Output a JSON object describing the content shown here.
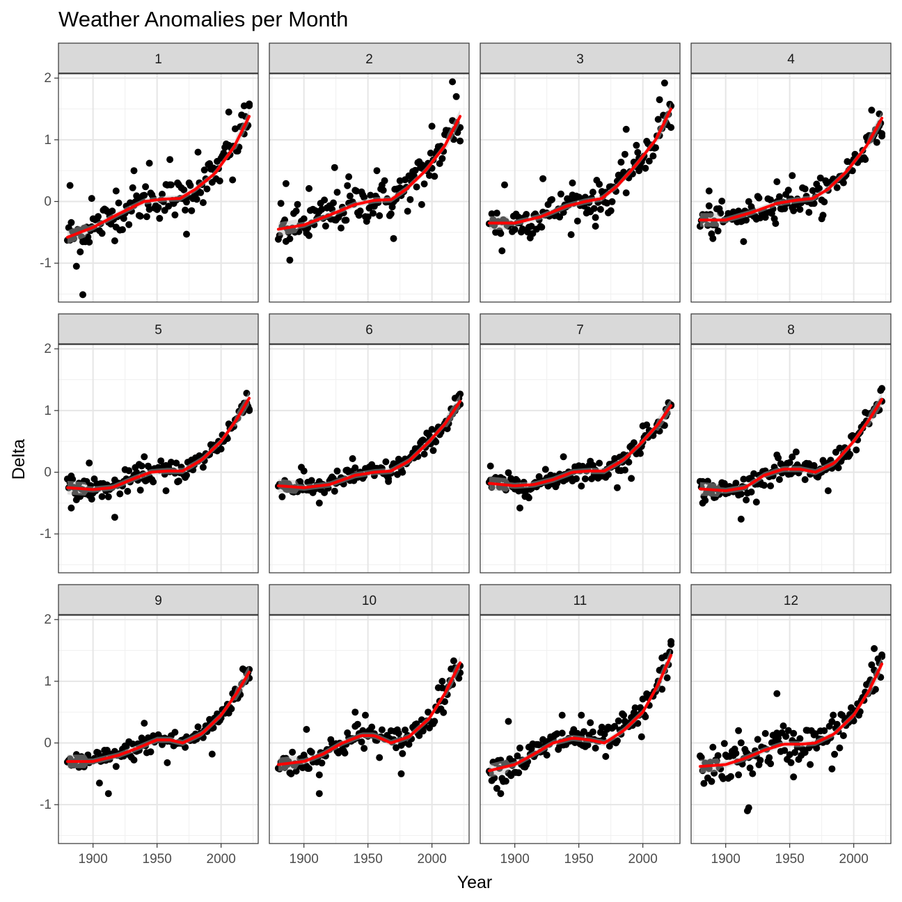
{
  "chart_data": {
    "type": "scatter",
    "title": "Weather Anomalies per Month",
    "xlabel": "Year",
    "ylabel": "Delta",
    "xlim": [
      1873,
      2029
    ],
    "ylim": [
      -1.63,
      2.07
    ],
    "xticks": [
      1900,
      1950,
      2000
    ],
    "yticks": [
      -1,
      0,
      1,
      2
    ],
    "grid": true,
    "facet_layout": "3 rows x 4 columns",
    "smooth_color": "#ff0000",
    "smooth_band_color": "#bdbdbd",
    "point_color": "#000000",
    "strip_fill": "#d9d9d9",
    "panels": [
      {
        "label": "1",
        "smooth": [
          [
            1880,
            -0.58
          ],
          [
            1900,
            -0.42
          ],
          [
            1920,
            -0.2
          ],
          [
            1940,
            0.0
          ],
          [
            1955,
            0.04
          ],
          [
            1968,
            0.05
          ],
          [
            1980,
            0.2
          ],
          [
            1995,
            0.45
          ],
          [
            2010,
            0.88
          ],
          [
            2022,
            1.38
          ]
        ],
        "outliers": [
          [
            1882,
            0.26
          ],
          [
            1887,
            -1.05
          ],
          [
            1892,
            -1.51
          ],
          [
            1899,
            0.05
          ],
          [
            1918,
            0.17
          ],
          [
            1932,
            0.5
          ],
          [
            1944,
            0.62
          ],
          [
            1960,
            0.68
          ],
          [
            1973,
            -0.53
          ],
          [
            1982,
            0.8
          ],
          [
            2006,
            1.45
          ],
          [
            2018,
            1.55
          ],
          [
            2022,
            1.58
          ],
          [
            2009,
            0.35
          ]
        ],
        "noise": 0.28
      },
      {
        "label": "2",
        "smooth": [
          [
            1880,
            -0.45
          ],
          [
            1900,
            -0.38
          ],
          [
            1920,
            -0.22
          ],
          [
            1940,
            -0.05
          ],
          [
            1955,
            0.02
          ],
          [
            1968,
            0.03
          ],
          [
            1980,
            0.2
          ],
          [
            1995,
            0.5
          ],
          [
            2010,
            0.9
          ],
          [
            2022,
            1.38
          ]
        ],
        "outliers": [
          [
            1886,
            0.29
          ],
          [
            1889,
            -0.95
          ],
          [
            1904,
            0.21
          ],
          [
            1924,
            0.55
          ],
          [
            1935,
            0.4
          ],
          [
            1957,
            0.5
          ],
          [
            1975,
            0.22
          ],
          [
            1992,
            -0.05
          ],
          [
            2000,
            1.22
          ],
          [
            2016,
            1.94
          ],
          [
            2019,
            1.7
          ],
          [
            2022,
            0.98
          ],
          [
            1970,
            -0.6
          ]
        ],
        "noise": 0.3
      },
      {
        "label": "3",
        "smooth": [
          [
            1880,
            -0.35
          ],
          [
            1900,
            -0.35
          ],
          [
            1920,
            -0.25
          ],
          [
            1940,
            -0.08
          ],
          [
            1955,
            0.0
          ],
          [
            1968,
            0.05
          ],
          [
            1980,
            0.25
          ],
          [
            1995,
            0.6
          ],
          [
            2010,
            1.0
          ],
          [
            2022,
            1.5
          ]
        ],
        "outliers": [
          [
            1890,
            -0.8
          ],
          [
            1892,
            0.27
          ],
          [
            1922,
            0.37
          ],
          [
            1945,
            0.3
          ],
          [
            1963,
            -0.4
          ],
          [
            1975,
            -0.15
          ],
          [
            1987,
            1.17
          ],
          [
            2013,
            1.65
          ],
          [
            2017,
            1.92
          ],
          [
            2022,
            1.2
          ],
          [
            1997,
            0.5
          ]
        ],
        "noise": 0.25
      },
      {
        "label": "4",
        "smooth": [
          [
            1880,
            -0.3
          ],
          [
            1900,
            -0.3
          ],
          [
            1920,
            -0.18
          ],
          [
            1940,
            -0.03
          ],
          [
            1955,
            0.02
          ],
          [
            1968,
            0.05
          ],
          [
            1980,
            0.2
          ],
          [
            1995,
            0.5
          ],
          [
            2010,
            0.9
          ],
          [
            2022,
            1.35
          ]
        ],
        "outliers": [
          [
            1887,
            0.17
          ],
          [
            1890,
            -0.6
          ],
          [
            1914,
            -0.65
          ],
          [
            1940,
            0.32
          ],
          [
            1952,
            0.42
          ],
          [
            1975,
            -0.28
          ],
          [
            2014,
            1.48
          ],
          [
            2020,
            1.42
          ],
          [
            2022,
            1.1
          ]
        ],
        "noise": 0.2
      },
      {
        "label": "5",
        "smooth": [
          [
            1880,
            -0.25
          ],
          [
            1900,
            -0.28
          ],
          [
            1915,
            -0.25
          ],
          [
            1930,
            -0.12
          ],
          [
            1945,
            0.0
          ],
          [
            1958,
            0.02
          ],
          [
            1970,
            0.02
          ],
          [
            1985,
            0.2
          ],
          [
            2000,
            0.5
          ],
          [
            2012,
            0.85
          ],
          [
            2022,
            1.2
          ]
        ],
        "outliers": [
          [
            1883,
            -0.58
          ],
          [
            1897,
            0.15
          ],
          [
            1917,
            -0.73
          ],
          [
            1940,
            0.25
          ],
          [
            1957,
            -0.3
          ],
          [
            2018,
            1.12
          ],
          [
            2020,
            1.28
          ],
          [
            2022,
            1.0
          ]
        ],
        "noise": 0.16
      },
      {
        "label": "6",
        "smooth": [
          [
            1880,
            -0.22
          ],
          [
            1900,
            -0.25
          ],
          [
            1920,
            -0.2
          ],
          [
            1940,
            -0.05
          ],
          [
            1955,
            0.0
          ],
          [
            1968,
            0.02
          ],
          [
            1982,
            0.18
          ],
          [
            1998,
            0.5
          ],
          [
            2010,
            0.78
          ],
          [
            2022,
            1.15
          ]
        ],
        "outliers": [
          [
            1898,
            0.08
          ],
          [
            1912,
            -0.5
          ],
          [
            1938,
            0.22
          ],
          [
            1966,
            -0.15
          ],
          [
            2018,
            1.2
          ],
          [
            2021,
            1.2
          ],
          [
            2022,
            1.1
          ]
        ],
        "noise": 0.15
      },
      {
        "label": "7",
        "smooth": [
          [
            1880,
            -0.18
          ],
          [
            1900,
            -0.22
          ],
          [
            1915,
            -0.2
          ],
          [
            1930,
            -0.12
          ],
          [
            1945,
            0.0
          ],
          [
            1958,
            0.02
          ],
          [
            1970,
            0.02
          ],
          [
            1985,
            0.2
          ],
          [
            2000,
            0.5
          ],
          [
            2012,
            0.78
          ],
          [
            2022,
            1.08
          ]
        ],
        "outliers": [
          [
            1881,
            0.1
          ],
          [
            1904,
            -0.58
          ],
          [
            1938,
            0.25
          ],
          [
            1965,
            -0.05
          ],
          [
            1980,
            -0.25
          ],
          [
            1991,
            -0.1
          ],
          [
            2000,
            0.75
          ],
          [
            2018,
            1.02
          ],
          [
            2022,
            1.08
          ]
        ],
        "noise": 0.15
      },
      {
        "label": "8",
        "smooth": [
          [
            1880,
            -0.27
          ],
          [
            1900,
            -0.3
          ],
          [
            1915,
            -0.25
          ],
          [
            1930,
            -0.05
          ],
          [
            1945,
            0.05
          ],
          [
            1958,
            0.05
          ],
          [
            1970,
            0.0
          ],
          [
            1985,
            0.15
          ],
          [
            2000,
            0.5
          ],
          [
            2012,
            0.85
          ],
          [
            2022,
            1.18
          ]
        ],
        "outliers": [
          [
            1882,
            -0.5
          ],
          [
            1912,
            -0.76
          ],
          [
            1940,
            0.28
          ],
          [
            1962,
            -0.12
          ],
          [
            1980,
            -0.3
          ],
          [
            2018,
            1.1
          ],
          [
            2022,
            1.15
          ]
        ],
        "noise": 0.16
      },
      {
        "label": "9",
        "smooth": [
          [
            1880,
            -0.3
          ],
          [
            1900,
            -0.3
          ],
          [
            1920,
            -0.2
          ],
          [
            1935,
            -0.08
          ],
          [
            1950,
            0.05
          ],
          [
            1960,
            0.05
          ],
          [
            1970,
            0.0
          ],
          [
            1985,
            0.15
          ],
          [
            2000,
            0.45
          ],
          [
            2012,
            0.8
          ],
          [
            2022,
            1.15
          ]
        ],
        "outliers": [
          [
            1912,
            -0.82
          ],
          [
            1905,
            -0.65
          ],
          [
            1940,
            0.32
          ],
          [
            1958,
            -0.32
          ],
          [
            1993,
            -0.18
          ],
          [
            2017,
            1.2
          ],
          [
            2022,
            1.05
          ]
        ],
        "noise": 0.15
      },
      {
        "label": "10",
        "smooth": [
          [
            1880,
            -0.35
          ],
          [
            1900,
            -0.3
          ],
          [
            1915,
            -0.18
          ],
          [
            1930,
            0.0
          ],
          [
            1945,
            0.12
          ],
          [
            1955,
            0.12
          ],
          [
            1968,
            0.0
          ],
          [
            1982,
            0.1
          ],
          [
            1998,
            0.4
          ],
          [
            2010,
            0.8
          ],
          [
            2022,
            1.3
          ]
        ],
        "outliers": [
          [
            1902,
            0.22
          ],
          [
            1912,
            -0.82
          ],
          [
            1940,
            0.5
          ],
          [
            1948,
            0.45
          ],
          [
            1976,
            -0.5
          ],
          [
            2008,
            1.0
          ],
          [
            2015,
            1.2
          ],
          [
            2022,
            1.25
          ]
        ],
        "noise": 0.2
      },
      {
        "label": "11",
        "smooth": [
          [
            1880,
            -0.45
          ],
          [
            1900,
            -0.35
          ],
          [
            1915,
            -0.18
          ],
          [
            1930,
            0.0
          ],
          [
            1945,
            0.08
          ],
          [
            1958,
            0.05
          ],
          [
            1970,
            0.0
          ],
          [
            1985,
            0.2
          ],
          [
            2000,
            0.5
          ],
          [
            2012,
            0.95
          ],
          [
            2022,
            1.42
          ]
        ],
        "outliers": [
          [
            1889,
            -0.82
          ],
          [
            1895,
            0.35
          ],
          [
            1937,
            0.45
          ],
          [
            1952,
            0.45
          ],
          [
            1985,
            0.45
          ],
          [
            1999,
            0.1
          ],
          [
            2015,
            1.38
          ],
          [
            2022,
            1.6
          ]
        ],
        "noise": 0.22
      },
      {
        "label": "12",
        "smooth": [
          [
            1880,
            -0.38
          ],
          [
            1900,
            -0.35
          ],
          [
            1915,
            -0.25
          ],
          [
            1930,
            -0.12
          ],
          [
            1945,
            -0.02
          ],
          [
            1958,
            -0.02
          ],
          [
            1970,
            0.0
          ],
          [
            1985,
            0.15
          ],
          [
            2000,
            0.45
          ],
          [
            2012,
            0.85
          ],
          [
            2022,
            1.28
          ]
        ],
        "outliers": [
          [
            1917,
            -1.1
          ],
          [
            1918,
            -1.05
          ],
          [
            1940,
            0.8
          ],
          [
            1910,
            0.2
          ],
          [
            1983,
            -0.42
          ],
          [
            2016,
            1.53
          ],
          [
            2022,
            1.4
          ],
          [
            1953,
            -0.55
          ]
        ],
        "noise": 0.28
      }
    ]
  }
}
